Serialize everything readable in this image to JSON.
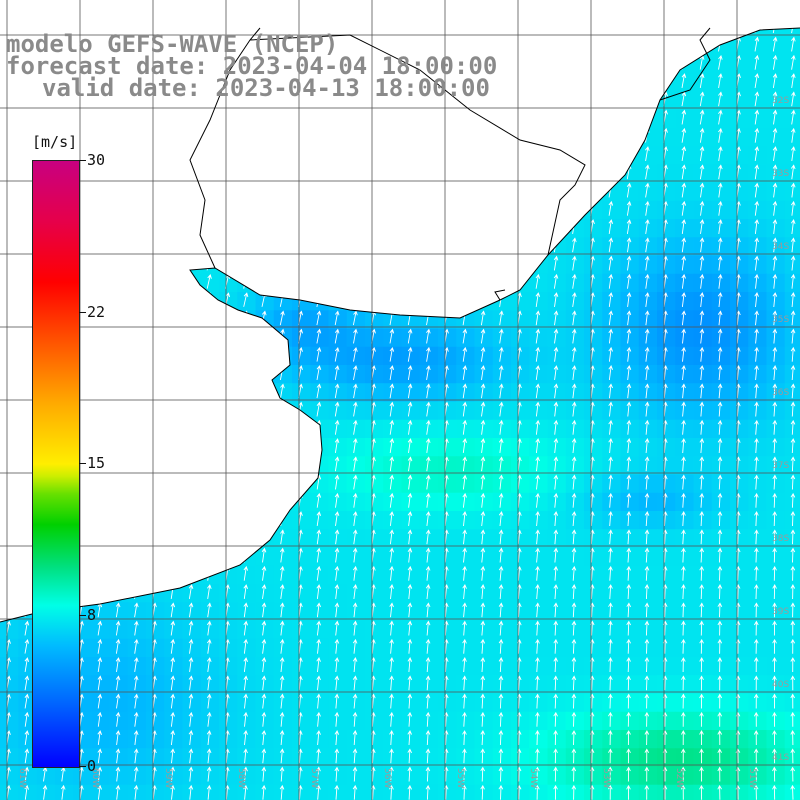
{
  "header": {
    "model_line": "modelo GEFS-WAVE (NCEP)",
    "forecast_line": "forecast date: 2023-04-04 18:00:00",
    "valid_line": "valid date: 2023-04-13 18:00:00"
  },
  "colorbar": {
    "unit": "[m/s]",
    "min": 0,
    "max": 30,
    "ticks": [
      {
        "label": "30",
        "value": 30
      },
      {
        "label": "22",
        "value": 22.5
      },
      {
        "label": "15",
        "value": 15
      },
      {
        "label": "8",
        "value": 7.5
      },
      {
        "label": "0",
        "value": 0
      }
    ],
    "colors": [
      "#0000ff",
      "#00bbff",
      "#00ffe6",
      "#00d000",
      "#ffee00",
      "#ff5500",
      "#ff0000",
      "#c80080"
    ]
  },
  "map": {
    "region": "Rio de la Plata / South Atlantic coast",
    "field": "wind speed with direction arrows",
    "lat_labels": [
      "32S",
      "33S",
      "34S",
      "35S",
      "36S",
      "37S",
      "38S",
      "39S",
      "40S",
      "41S"
    ],
    "lon_labels": [
      "61W",
      "60W",
      "59W",
      "58W",
      "57W",
      "56W",
      "55W",
      "54W",
      "53W",
      "52W",
      "51W"
    ],
    "dominant_wind_direction_from": "south-southwest",
    "speed_range_ms": [
      3,
      10
    ],
    "colors": {
      "land": "#ffffff",
      "coast": "#000000",
      "grid": "#555555",
      "arrow": "#ffffff",
      "label": "#9a9a9a"
    }
  }
}
